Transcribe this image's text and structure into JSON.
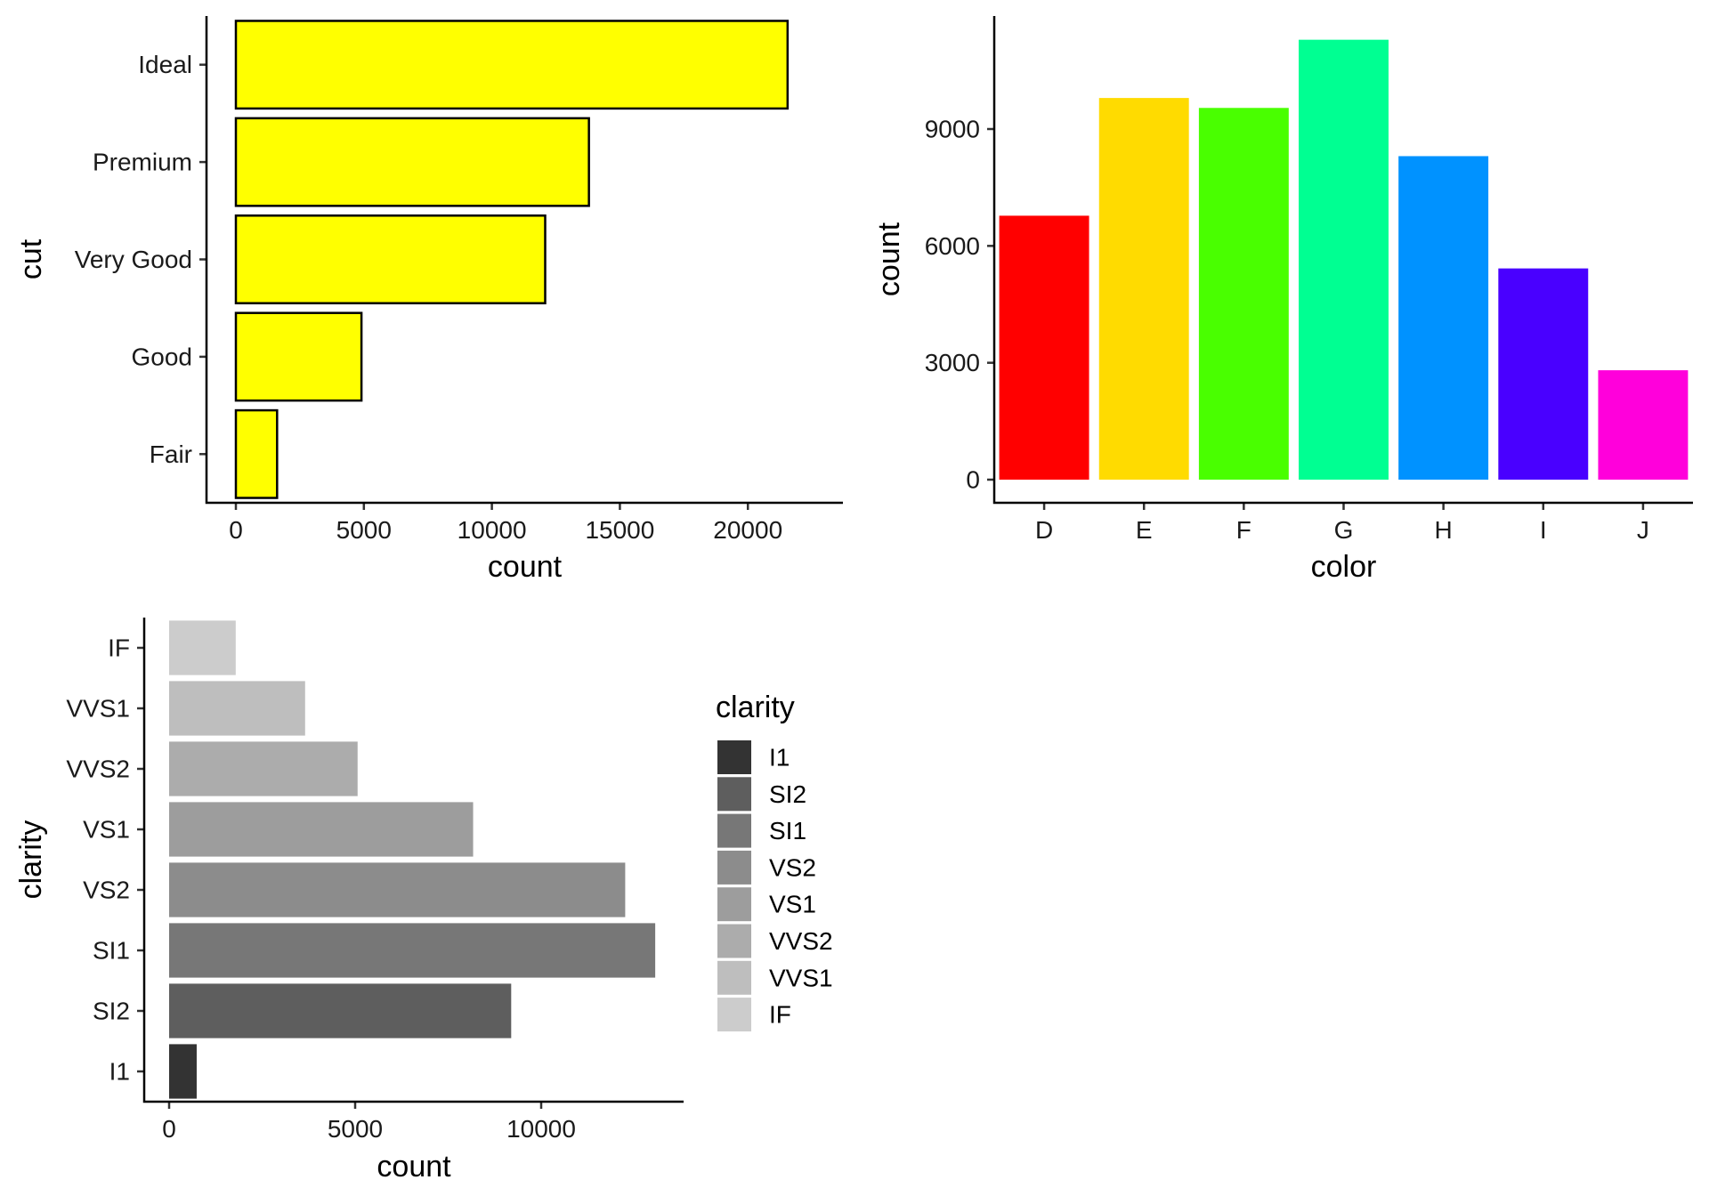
{
  "chart_data": [
    {
      "type": "bar",
      "orientation": "horizontal",
      "categories": [
        "Fair",
        "Good",
        "Very Good",
        "Premium",
        "Ideal"
      ],
      "values": [
        1610,
        4906,
        12082,
        13791,
        21551
      ],
      "xlabel": "count",
      "ylabel": "cut",
      "xlim": [
        0,
        22600
      ],
      "xticks": [
        0,
        5000,
        10000,
        15000,
        20000
      ],
      "fill": "#FFFF00",
      "outline": "#000000"
    },
    {
      "type": "bar",
      "orientation": "vertical",
      "categories": [
        "D",
        "E",
        "F",
        "G",
        "H",
        "I",
        "J"
      ],
      "values": [
        6775,
        9797,
        9542,
        11292,
        8304,
        5422,
        2808
      ],
      "colors": [
        "#FF0000",
        "#FFDB00",
        "#49FF00",
        "#00FF92",
        "#0092FF",
        "#4900FF",
        "#FF00DB"
      ],
      "xlabel": "color",
      "ylabel": "count",
      "ylim": [
        0,
        11850
      ],
      "yticks": [
        0,
        3000,
        6000,
        9000
      ]
    },
    {
      "type": "bar",
      "orientation": "horizontal",
      "categories": [
        "I1",
        "SI2",
        "SI1",
        "VS2",
        "VS1",
        "VVS2",
        "VVS1",
        "IF"
      ],
      "values": [
        741,
        9194,
        13065,
        12258,
        8171,
        5066,
        3655,
        1790
      ],
      "colors": [
        "#333333",
        "#5E5E5E",
        "#777777",
        "#8C8C8C",
        "#9D9D9D",
        "#ACACAC",
        "#BEBEBE",
        "#CCCCCC"
      ],
      "xlabel": "count",
      "ylabel": "clarity",
      "xlim": [
        0,
        13700
      ],
      "xticks": [
        0,
        5000,
        10000
      ],
      "legend": {
        "title": "clarity",
        "items": [
          "I1",
          "SI2",
          "SI1",
          "VS2",
          "VS1",
          "VVS2",
          "VVS1",
          "IF"
        ],
        "placement": "right"
      }
    }
  ]
}
